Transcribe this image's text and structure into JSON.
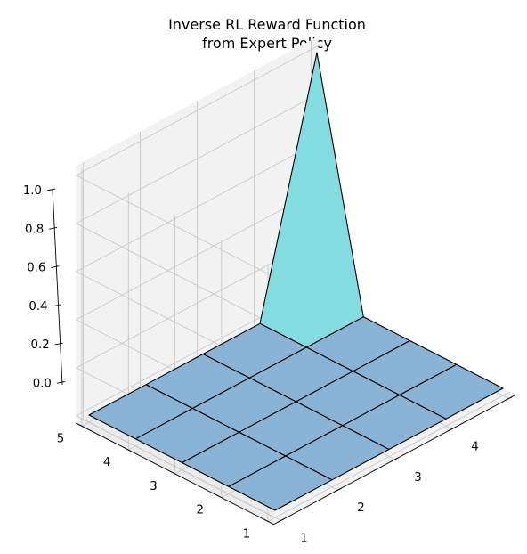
{
  "chart_data": {
    "type": "surface3d",
    "title": "Inverse RL Reward Function\nfrom Expert Policy",
    "x": [
      1,
      2,
      3,
      4,
      5
    ],
    "y": [
      1,
      2,
      3,
      4,
      5
    ],
    "x_ticks": [
      "1",
      "2",
      "3",
      "4",
      "5"
    ],
    "y_ticks": [
      "1",
      "2",
      "3",
      "4",
      "5"
    ],
    "z_ticks": [
      "0.0",
      "0.2",
      "0.4",
      "0.6",
      "0.8",
      "1.0"
    ],
    "zlim": [
      0,
      1
    ],
    "z": [
      [
        0,
        0,
        0,
        0,
        0
      ],
      [
        0,
        0,
        0,
        0,
        0
      ],
      [
        0,
        0,
        0,
        0,
        0
      ],
      [
        0,
        0,
        0,
        0,
        0
      ],
      [
        0,
        0,
        0,
        0,
        1
      ]
    ],
    "z_indexing": "z[x-1][y-1]",
    "grid": true,
    "colors": {
      "surface_low": "#8ab4d5",
      "surface_high": "#82dce0",
      "edge": "#000000",
      "pane": "#f2f2f2",
      "grid": "#c8c8c8"
    }
  }
}
